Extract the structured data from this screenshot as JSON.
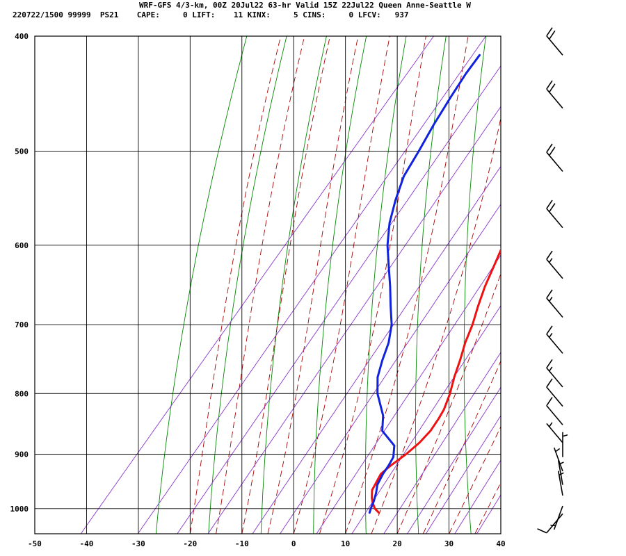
{
  "header": {
    "title": "WRF-GFS 4/3-km, 00Z 20Jul22 63-hr Valid 15Z 22Jul22 Queen Anne-Seattle W",
    "stats_line": "220722/1500 99999  PS21    CAPE:     0 LIFT:    11 KINX:     5 CINS:     0 LFCV:   937"
  },
  "chart_data": {
    "type": "line",
    "subtype": "skew-t log-p sounding",
    "title": "WRF-GFS 4/3-km, 00Z 20Jul22 63-hr Valid 15Z 22Jul22 Queen Anne-Seattle W",
    "xlabel": "",
    "ylabel": "",
    "x_ticks": [
      -50,
      -40,
      -30,
      -20,
      -10,
      0,
      10,
      20,
      30,
      40
    ],
    "y_ticks": [
      400,
      500,
      600,
      700,
      800,
      900,
      1000
    ],
    "xlim": [
      -50,
      40
    ],
    "ylim": [
      1050,
      400
    ],
    "y_scale": "log",
    "grid": true,
    "colors": {
      "temperature": "#ee1111",
      "dewpoint": "#1122dd",
      "dry_adiabat": "#008800",
      "moist_adiabat": "#aa0000",
      "mixing_ratio": "#8833cc",
      "grid": "#000000",
      "wind_barb": "#000000"
    },
    "series": [
      {
        "role": "temperature",
        "points": [
          [
            13.2,
            1008
          ],
          [
            11.8,
            1000
          ],
          [
            10.6,
            990
          ],
          [
            9.6,
            980
          ],
          [
            8.4,
            965
          ],
          [
            7.6,
            935
          ],
          [
            8.2,
            920
          ],
          [
            9.4,
            900
          ],
          [
            10.2,
            880
          ],
          [
            10.5,
            860
          ],
          [
            10.2,
            840
          ],
          [
            9.8,
            825
          ],
          [
            8.5,
            800
          ],
          [
            6.8,
            775
          ],
          [
            5.3,
            750
          ],
          [
            3.6,
            725
          ],
          [
            2.2,
            700
          ],
          [
            0.4,
            675
          ],
          [
            -1.3,
            650
          ],
          [
            -2.7,
            625
          ],
          [
            -4.2,
            600
          ],
          [
            -6.3,
            575
          ],
          [
            -8.7,
            550
          ],
          [
            -10.8,
            525
          ],
          [
            -13.0,
            500
          ],
          [
            -16.2,
            475
          ],
          [
            -19.4,
            450
          ],
          [
            -22.0,
            425
          ],
          [
            -23.8,
            410
          ]
        ]
      },
      {
        "role": "dewpoint",
        "points": [
          [
            11.4,
            1008
          ],
          [
            11.0,
            1000
          ],
          [
            10.4,
            985
          ],
          [
            9.6,
            970
          ],
          [
            8.6,
            955
          ],
          [
            8.0,
            935
          ],
          [
            7.8,
            920
          ],
          [
            7.4,
            905
          ],
          [
            5.8,
            885
          ],
          [
            1.2,
            860
          ],
          [
            -1.0,
            835
          ],
          [
            -5.5,
            800
          ],
          [
            -8.0,
            775
          ],
          [
            -9.7,
            750
          ],
          [
            -11.2,
            725
          ],
          [
            -13.4,
            700
          ],
          [
            -16.5,
            675
          ],
          [
            -19.6,
            650
          ],
          [
            -23.0,
            625
          ],
          [
            -26.5,
            600
          ],
          [
            -29.5,
            575
          ],
          [
            -31.9,
            550
          ],
          [
            -34.0,
            525
          ],
          [
            -35.0,
            500
          ],
          [
            -36.2,
            475
          ],
          [
            -37.2,
            450
          ],
          [
            -37.9,
            430
          ],
          [
            -38.1,
            415
          ]
        ]
      }
    ],
    "wind_barbs": [
      {
        "p": 415,
        "dir": 320,
        "kt": 20
      },
      {
        "p": 460,
        "dir": 320,
        "kt": 20
      },
      {
        "p": 520,
        "dir": 320,
        "kt": 20
      },
      {
        "p": 580,
        "dir": 320,
        "kt": 20
      },
      {
        "p": 640,
        "dir": 320,
        "kt": 15
      },
      {
        "p": 690,
        "dir": 320,
        "kt": 15
      },
      {
        "p": 740,
        "dir": 320,
        "kt": 15
      },
      {
        "p": 790,
        "dir": 320,
        "kt": 15
      },
      {
        "p": 820,
        "dir": 320,
        "kt": 10
      },
      {
        "p": 850,
        "dir": 320,
        "kt": 10
      },
      {
        "p": 880,
        "dir": 320,
        "kt": 5
      },
      {
        "p": 905,
        "dir": 360,
        "kt": 5
      },
      {
        "p": 930,
        "dir": 340,
        "kt": 5
      },
      {
        "p": 955,
        "dir": 350,
        "kt": 5
      },
      {
        "p": 975,
        "dir": 350,
        "kt": 5
      },
      {
        "p": 995,
        "dir": 200,
        "kt": 5
      },
      {
        "p": 1010,
        "dir": 220,
        "kt": 10
      }
    ]
  }
}
